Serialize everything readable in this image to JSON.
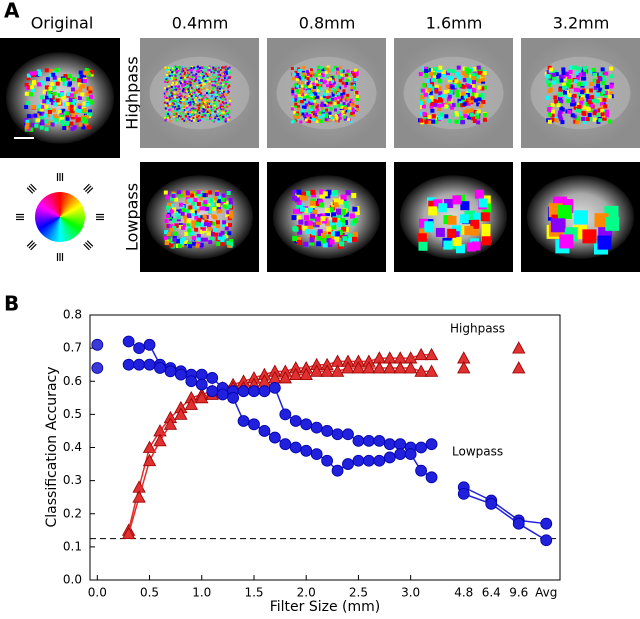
{
  "panel_a": {
    "label": "A",
    "original_label": "Original",
    "scale_bar": "2mm",
    "columns": [
      "0.4mm",
      "0.8mm",
      "1.6mm",
      "3.2mm"
    ],
    "rows": [
      "Highpass",
      "Lowpass"
    ]
  },
  "panel_b_label": "B",
  "chart_data": [
    {
      "type": "scatter",
      "x_label": "Filter Size (mm)",
      "y_label": "Classification Accuracy",
      "annotations": [
        "Highpass",
        "Lowpass"
      ],
      "xlim": [
        -0.07,
        3.3
      ],
      "ylim": [
        0,
        0.8
      ],
      "xticks": [
        {
          "value": 0,
          "label": "0.0"
        },
        0.5,
        {
          "value": 1,
          "label": "1.0"
        },
        1.5,
        {
          "value": 2,
          "label": "2.0"
        },
        2.5,
        {
          "value": 3,
          "label": "3.0"
        }
      ],
      "yticks": [
        {
          "value": 0,
          "label": "0.0"
        },
        0.1,
        0.2,
        0.3,
        0.4,
        0.5,
        0.6,
        0.7,
        0.8
      ],
      "reference_line": 0.125,
      "series": [
        {
          "color": "#3a3ad6",
          "marker": "circle",
          "connect": false,
          "x": [
            0,
            0
          ],
          "values": [
            0.71,
            0.64
          ]
        },
        {
          "color": "#e03030",
          "marker": "triangle",
          "connect": true,
          "x": [
            0.3,
            0.4,
            0.5,
            0.6,
            0.7,
            0.8,
            0.9,
            1.0,
            1.1,
            1.2,
            1.3,
            1.4,
            1.5,
            1.6,
            1.7,
            1.8,
            1.9,
            2.0,
            2.1,
            2.2,
            2.3,
            2.4,
            2.5,
            2.6,
            2.7,
            2.8,
            2.9,
            3.0,
            3.1,
            3.2
          ],
          "values": [
            0.15,
            0.28,
            0.4,
            0.45,
            0.49,
            0.52,
            0.55,
            0.56,
            0.57,
            0.58,
            0.59,
            0.6,
            0.61,
            0.62,
            0.63,
            0.63,
            0.64,
            0.64,
            0.65,
            0.65,
            0.66,
            0.66,
            0.66,
            0.66,
            0.67,
            0.67,
            0.67,
            0.67,
            0.68,
            0.68
          ]
        },
        {
          "color": "#e03030",
          "marker": "triangle",
          "connect": true,
          "x": [
            0.3,
            0.4,
            0.5,
            0.6,
            0.7,
            0.8,
            0.9,
            1.0,
            1.1,
            1.2,
            1.3,
            1.4,
            1.5,
            1.6,
            1.7,
            1.8,
            1.9,
            2.0,
            2.1,
            2.2,
            2.3,
            2.4,
            2.5,
            2.6,
            2.7,
            2.8,
            2.9,
            3.0,
            3.1,
            3.2
          ],
          "values": [
            0.14,
            0.25,
            0.36,
            0.42,
            0.47,
            0.5,
            0.53,
            0.55,
            0.56,
            0.57,
            0.58,
            0.58,
            0.59,
            0.6,
            0.61,
            0.61,
            0.62,
            0.62,
            0.63,
            0.63,
            0.63,
            0.64,
            0.64,
            0.64,
            0.64,
            0.64,
            0.64,
            0.64,
            0.63,
            0.63
          ]
        },
        {
          "color": "#2020dd",
          "marker": "circle",
          "connect": true,
          "x": [
            0.3,
            0.4,
            0.5,
            0.6,
            0.7,
            0.8,
            0.9,
            1.0,
            1.1,
            1.2,
            1.3,
            1.4,
            1.5,
            1.6,
            1.7,
            1.8,
            1.9,
            2.0,
            2.1,
            2.2,
            2.3,
            2.4,
            2.5,
            2.6,
            2.7,
            2.8,
            2.9,
            3.0,
            3.1,
            3.2
          ],
          "values": [
            0.72,
            0.7,
            0.71,
            0.65,
            0.64,
            0.63,
            0.62,
            0.62,
            0.61,
            0.58,
            0.57,
            0.57,
            0.57,
            0.57,
            0.58,
            0.5,
            0.48,
            0.47,
            0.46,
            0.45,
            0.44,
            0.44,
            0.42,
            0.42,
            0.42,
            0.41,
            0.41,
            0.4,
            0.4,
            0.41
          ]
        },
        {
          "color": "#2020dd",
          "marker": "circle",
          "connect": true,
          "x": [
            0.3,
            0.4,
            0.5,
            0.6,
            0.7,
            0.8,
            0.9,
            1.0,
            1.1,
            1.2,
            1.3,
            1.4,
            1.5,
            1.6,
            1.7,
            1.8,
            1.9,
            2.0,
            2.1,
            2.2,
            2.3,
            2.4,
            2.5,
            2.6,
            2.7,
            2.8,
            2.9,
            3.0,
            3.1,
            3.2
          ],
          "values": [
            0.65,
            0.65,
            0.65,
            0.64,
            0.63,
            0.62,
            0.6,
            0.59,
            0.57,
            0.56,
            0.55,
            0.48,
            0.47,
            0.45,
            0.43,
            0.41,
            0.4,
            0.39,
            0.38,
            0.36,
            0.33,
            0.35,
            0.36,
            0.36,
            0.36,
            0.37,
            0.38,
            0.38,
            0.33,
            0.31
          ]
        }
      ]
    },
    {
      "type": "dot",
      "categories": [
        "4.8",
        "6.4",
        "9.6",
        "Avg"
      ],
      "ylim": [
        0,
        0.8
      ],
      "series": [
        {
          "color": "#e03030",
          "marker": "triangle",
          "connect": false,
          "values": [
            0.67,
            null,
            0.7,
            null
          ]
        },
        {
          "color": "#e03030",
          "marker": "triangle",
          "connect": false,
          "values": [
            0.64,
            null,
            0.64,
            null
          ]
        },
        {
          "color": "#2020dd",
          "marker": "circle",
          "connect": true,
          "values": [
            0.28,
            0.24,
            0.18,
            0.17
          ]
        },
        {
          "color": "#2020dd",
          "marker": "circle",
          "connect": true,
          "values": [
            0.26,
            0.23,
            0.17,
            0.12
          ]
        }
      ]
    }
  ]
}
